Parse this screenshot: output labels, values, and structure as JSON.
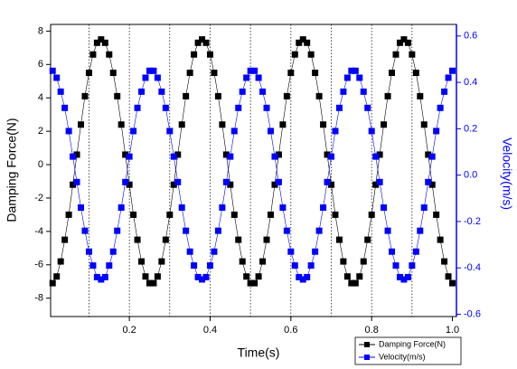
{
  "chart_data": {
    "type": "line",
    "xlabel": "Time(s)",
    "ylabel": "Damping Force(N)",
    "y2label": "Velocity(m/s)",
    "x": [
      0.01,
      0.02,
      0.03,
      0.04,
      0.05,
      0.06,
      0.07,
      0.08,
      0.09,
      0.1,
      0.11,
      0.12,
      0.13,
      0.14,
      0.15,
      0.16,
      0.17,
      0.18,
      0.19,
      0.2,
      0.21,
      0.22,
      0.23,
      0.24,
      0.25,
      0.26,
      0.27,
      0.28,
      0.29,
      0.3,
      0.31,
      0.32,
      0.33,
      0.34,
      0.35,
      0.36,
      0.37,
      0.38,
      0.39,
      0.4,
      0.41,
      0.42,
      0.43,
      0.44,
      0.45,
      0.46,
      0.47,
      0.48,
      0.49,
      0.5,
      0.51,
      0.52,
      0.53,
      0.54,
      0.55,
      0.56,
      0.57,
      0.58,
      0.59,
      0.6,
      0.61,
      0.62,
      0.63,
      0.64,
      0.65,
      0.66,
      0.67,
      0.68,
      0.69,
      0.7,
      0.71,
      0.72,
      0.73,
      0.74,
      0.75,
      0.76,
      0.77,
      0.78,
      0.79,
      0.8,
      0.81,
      0.82,
      0.83,
      0.84,
      0.85,
      0.86,
      0.87,
      0.88,
      0.89,
      0.9,
      0.91,
      0.92,
      0.93,
      0.94,
      0.95,
      0.96,
      0.97,
      0.98,
      0.99,
      1
    ],
    "series": [
      {
        "name": "Damping Force(N)",
        "color": "#000000",
        "axis": "y",
        "values": [
          -7.1,
          -6.7,
          -5.8,
          -4.5,
          -3.0,
          -1.2,
          0.6,
          2.4,
          4.1,
          5.5,
          6.6,
          7.3,
          7.5,
          7.3,
          6.6,
          5.5,
          4.1,
          2.4,
          0.6,
          -1.2,
          -3.0,
          -4.5,
          -5.8,
          -6.7,
          -7.1,
          -7.1,
          -6.7,
          -5.8,
          -4.5,
          -3.0,
          -1.2,
          0.6,
          2.4,
          4.1,
          5.5,
          6.6,
          7.3,
          7.5,
          7.3,
          6.6,
          5.5,
          4.1,
          2.4,
          0.6,
          -1.2,
          -3.0,
          -4.5,
          -5.8,
          -6.7,
          -7.1,
          -7.1,
          -6.7,
          -5.8,
          -4.5,
          -3.0,
          -1.2,
          0.6,
          2.4,
          4.1,
          5.5,
          6.6,
          7.3,
          7.5,
          7.3,
          6.6,
          5.5,
          4.1,
          2.4,
          0.6,
          -1.2,
          -3.0,
          -4.5,
          -5.8,
          -6.7,
          -7.1,
          -7.1,
          -6.7,
          -5.8,
          -4.5,
          -3.0,
          -1.2,
          0.6,
          2.4,
          4.1,
          5.5,
          6.6,
          7.3,
          7.5,
          7.3,
          6.6,
          5.5,
          4.1,
          2.4,
          0.6,
          -1.2,
          -3.0,
          -4.5,
          -5.8,
          -6.7,
          -7.1
        ]
      },
      {
        "name": "Velocity(m/s)",
        "color": "#0000ff",
        "axis": "y2",
        "values": [
          0.45,
          0.42,
          0.36,
          0.29,
          0.19,
          0.08,
          -0.03,
          -0.14,
          -0.24,
          -0.33,
          -0.39,
          -0.44,
          -0.45,
          -0.44,
          -0.39,
          -0.33,
          -0.24,
          -0.14,
          -0.03,
          0.08,
          0.19,
          0.29,
          0.36,
          0.42,
          0.45,
          0.45,
          0.42,
          0.36,
          0.29,
          0.19,
          0.08,
          -0.03,
          -0.14,
          -0.24,
          -0.33,
          -0.39,
          -0.44,
          -0.45,
          -0.44,
          -0.39,
          -0.33,
          -0.24,
          -0.14,
          -0.03,
          0.08,
          0.19,
          0.29,
          0.36,
          0.42,
          0.45,
          0.45,
          0.42,
          0.36,
          0.29,
          0.19,
          0.08,
          -0.03,
          -0.14,
          -0.24,
          -0.33,
          -0.39,
          -0.44,
          -0.45,
          -0.44,
          -0.39,
          -0.33,
          -0.24,
          -0.14,
          -0.03,
          0.08,
          0.19,
          0.29,
          0.36,
          0.42,
          0.45,
          0.45,
          0.42,
          0.36,
          0.29,
          0.19,
          0.08,
          -0.03,
          -0.14,
          -0.24,
          -0.33,
          -0.39,
          -0.44,
          -0.45,
          -0.44,
          -0.39,
          -0.33,
          -0.24,
          -0.14,
          -0.03,
          0.08,
          0.19,
          0.29,
          0.36,
          0.42,
          0.45
        ]
      }
    ],
    "xlim": [
      0.005,
      1.01
    ],
    "xticks": [
      0.2,
      0.4,
      0.6,
      0.8,
      {
        "value": 1,
        "label": "1.0"
      }
    ],
    "xgrid": [
      0.1,
      0.2,
      0.3,
      0.4,
      0.5,
      0.6,
      0.7,
      0.8,
      0.9
    ],
    "ylim": [
      -9.1,
      8.4
    ],
    "yticks": [
      -8,
      -6,
      -4,
      -2,
      0,
      2,
      4,
      6,
      8
    ],
    "y2lim": [
      -0.61,
      0.65
    ],
    "y2ticks": [
      -0.6,
      -0.4,
      -0.2,
      {
        "value": 0,
        "label": "0.0"
      },
      0.2,
      0.4,
      0.6
    ],
    "legend": "bottom-right"
  }
}
